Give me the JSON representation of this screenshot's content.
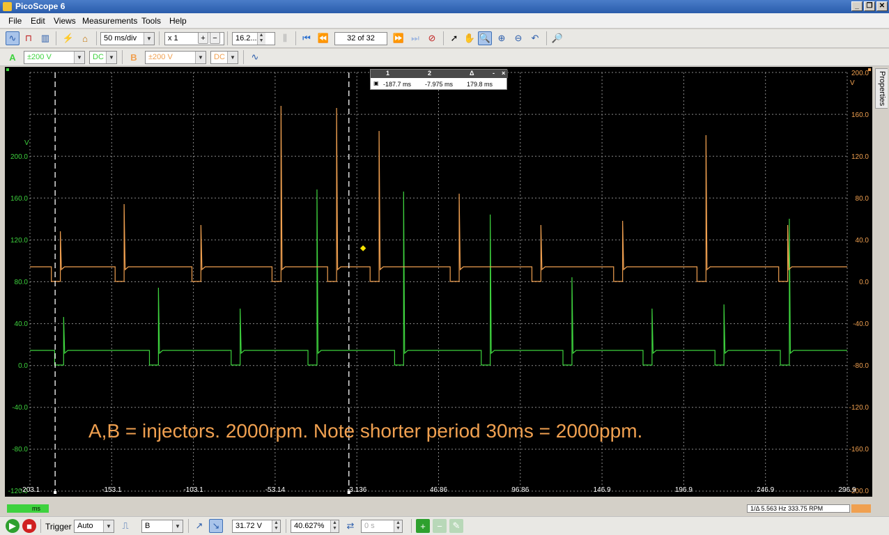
{
  "window": {
    "title": "PicoScope 6"
  },
  "menu": [
    "File",
    "Edit",
    "Views",
    "Measurements",
    "Tools",
    "Help"
  ],
  "toolbar1": {
    "timebase": "50 ms/div",
    "zoom": "x 1",
    "samples": "16.2...",
    "buffer": "32 of 32"
  },
  "toolbar2": {
    "chA": {
      "label": "A",
      "range": "±200 V",
      "coupling": "DC",
      "color": "#3ed23e"
    },
    "chB": {
      "label": "B",
      "range": "±200 V",
      "coupling": "DC",
      "color": "#f0a050"
    }
  },
  "rulers": {
    "headers": [
      "1",
      "2",
      "Δ"
    ],
    "values": [
      "-187.7 ms",
      "-7.975 ms",
      "179.8 ms"
    ]
  },
  "annotation": "A,B = injectors.  2000rpm.  Note shorter period 30ms = 2000ppm.",
  "properties_tab": "Properties",
  "axes": {
    "x_ticks": [
      "-203.1",
      "-153.1",
      "-103.1",
      "-53.14",
      "-3.136",
      "46.86",
      "96.86",
      "146.9",
      "196.9",
      "246.9",
      "296.9"
    ],
    "x_unit": "ms",
    "left_unit": "V",
    "left_ticks": [
      "200.0",
      "160.0",
      "120.0",
      "80.0",
      "40.0",
      "0.0",
      "-40.0",
      "-80.0",
      "-120.0"
    ],
    "right_unit": "V",
    "right_ticks": [
      "200.0",
      "160.0",
      "120.0",
      "80.0",
      "40.0",
      "0.0",
      "-40.0",
      "-80.0",
      "-120.0",
      "-160.0",
      "-200.0"
    ]
  },
  "freq_readout": "1/Δ  5.563 Hz  333.75 RPM",
  "bottom": {
    "trigger_label": "Trigger",
    "trigger_mode": "Auto",
    "trigger_channel": "B",
    "threshold": "31.72 V",
    "pretrigger": "40.627%",
    "delay": "0 s"
  },
  "chart_data": {
    "type": "line",
    "xlabel": "ms",
    "xlim": [
      -203.1,
      296.9
    ],
    "series": [
      {
        "name": "A",
        "color": "#3ed23e",
        "baseline_v": 14,
        "pulse_low_v": 0,
        "pulse_starts_ms": [
          -188,
          -130,
          -80,
          -33,
          20,
          73,
          123,
          172,
          216,
          256
        ],
        "spike_v": [
          46,
          74,
          54,
          168,
          166,
          144,
          84,
          54,
          58,
          140,
          54,
          64,
          58
        ],
        "pulse_width_ms": 5.5
      },
      {
        "name": "B",
        "color": "#f0a050",
        "baseline_v": 14,
        "pulse_low_v": 0,
        "pulse_starts_ms": [
          -190,
          -151,
          -104,
          -55,
          -21,
          5,
          54,
          104,
          154,
          205,
          255
        ],
        "spike_v": [
          48,
          74,
          54,
          168,
          166,
          144,
          84,
          54,
          58,
          140,
          54,
          64,
          58
        ],
        "pulse_width_ms": 5.5
      }
    ]
  }
}
